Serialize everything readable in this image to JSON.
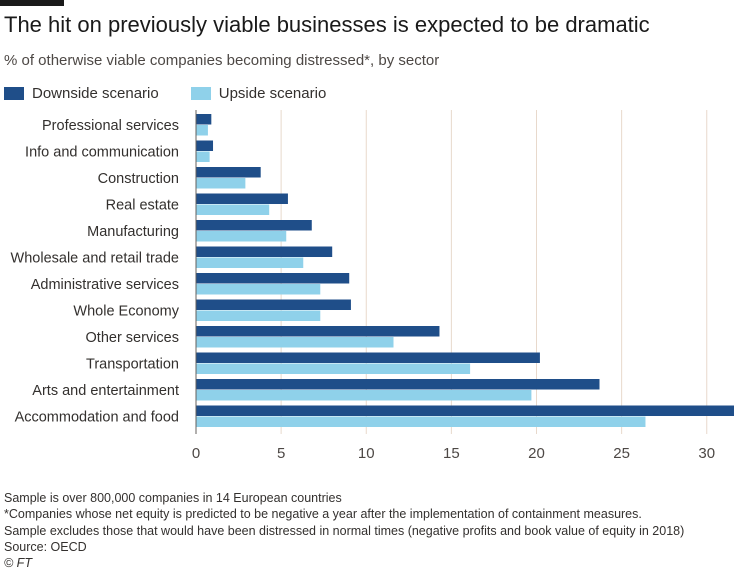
{
  "header": {
    "title": "The hit on previously viable businesses is expected to be dramatic",
    "subtitle": "% of otherwise viable companies becoming distressed*, by sector"
  },
  "colors": {
    "downside": "#1f4e89",
    "upside": "#8fd1ea",
    "gridline": "#e8d9cc",
    "text": "#33302e"
  },
  "chart_data": {
    "type": "bar",
    "orientation": "horizontal",
    "categories": [
      "Professional services",
      "Info and communication",
      "Construction",
      "Real estate",
      "Manufacturing",
      "Wholesale and retail trade",
      "Administrative services",
      "Whole Economy",
      "Other services",
      "Transportation",
      "Arts and entertainment",
      "Accommodation and food"
    ],
    "series": [
      {
        "name": "Downside scenario",
        "values": [
          0.9,
          1.0,
          3.8,
          5.4,
          6.8,
          8.0,
          9.0,
          9.1,
          14.3,
          20.2,
          23.7,
          31.6
        ]
      },
      {
        "name": "Upside scenario",
        "values": [
          0.7,
          0.8,
          2.9,
          4.3,
          5.3,
          6.3,
          7.3,
          7.3,
          11.6,
          16.1,
          19.7,
          26.4
        ]
      }
    ],
    "xlim": [
      0,
      31.6
    ],
    "xticks": [
      0,
      5,
      10,
      15,
      20,
      25,
      30
    ],
    "grid": true,
    "legend_position": "top-left"
  },
  "footer": {
    "line1": "Sample is over 800,000 companies in 14 European countries",
    "line2": "*Companies whose net equity is predicted to be negative a year after the implementation of containment measures.",
    "line3": "Sample excludes those that would have been distressed in normal times (negative profits and book value of equity in 2018)",
    "line4": "Source: OECD",
    "line5": "© FT"
  }
}
